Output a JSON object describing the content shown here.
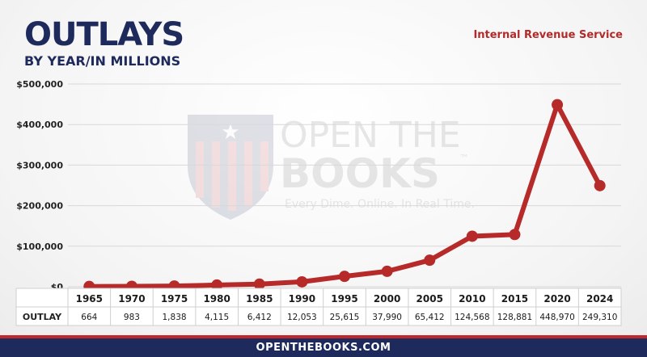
{
  "header": {
    "title": "OUTLAYS",
    "subtitle": "BY YEAR/IN MILLIONS",
    "agency": "Internal Revenue Service"
  },
  "watermark": {
    "line1": "OPEN THE",
    "line2": "BOOKS",
    "tagline": "Every Dime. Online. In Real Time.",
    "tm": "™"
  },
  "footer": {
    "url": "OPENTHEBOOKS.COM"
  },
  "colors": {
    "navy": "#1d2a5b",
    "red": "#c0272d",
    "line": "#b72a2a",
    "agency": "#b22a2a"
  },
  "chart_data": {
    "type": "line",
    "title": "OUTLAYS",
    "subtitle": "BY YEAR/IN MILLIONS",
    "categories": [
      "1965",
      "1970",
      "1975",
      "1980",
      "1985",
      "1990",
      "1995",
      "2000",
      "2005",
      "2010",
      "2015",
      "2020",
      "2024"
    ],
    "series": [
      {
        "name": "OUTLAY",
        "values": [
          664,
          983,
          1838,
          4115,
          6412,
          12053,
          25615,
          37990,
          65412,
          124568,
          128881,
          448970,
          249310
        ]
      }
    ],
    "value_labels": [
      "664",
      "983",
      "1,838",
      "4,115",
      "6,412",
      "12,053",
      "25,615",
      "37,990",
      "65,412",
      "124,568",
      "128,881",
      "448,970",
      "249,310"
    ],
    "y_ticks": [
      0,
      100000,
      200000,
      300000,
      400000,
      500000
    ],
    "y_tick_labels": [
      "$0",
      "$100,000",
      "$200,000",
      "$300,000",
      "$400,000",
      "$500,000"
    ],
    "ylim": [
      0,
      500000
    ],
    "table_row_label": "OUTLAY",
    "grid": true
  }
}
